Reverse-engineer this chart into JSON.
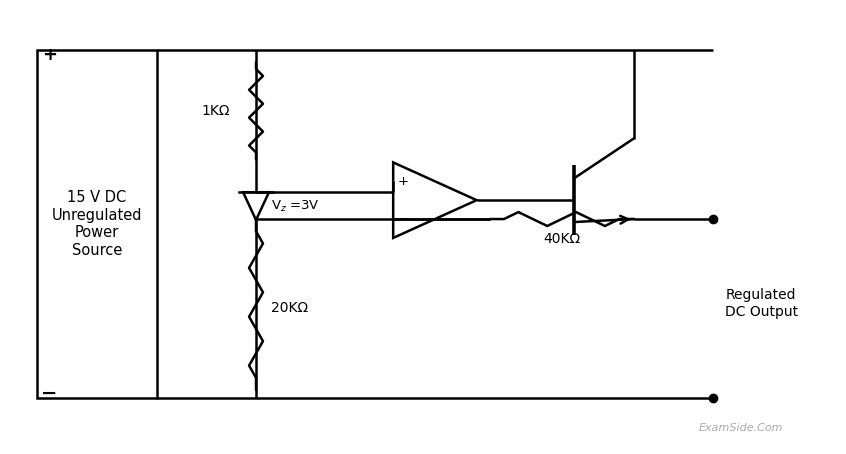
{
  "bg_color": "#ffffff",
  "line_color": "#000000",
  "omega": "Ω",
  "source_label": "15 V DC\nUnregulated\nPower\nSource",
  "regulated_label": "Regulated\nDC Output",
  "watermark": "ExamSide.Com",
  "lw": 1.8
}
